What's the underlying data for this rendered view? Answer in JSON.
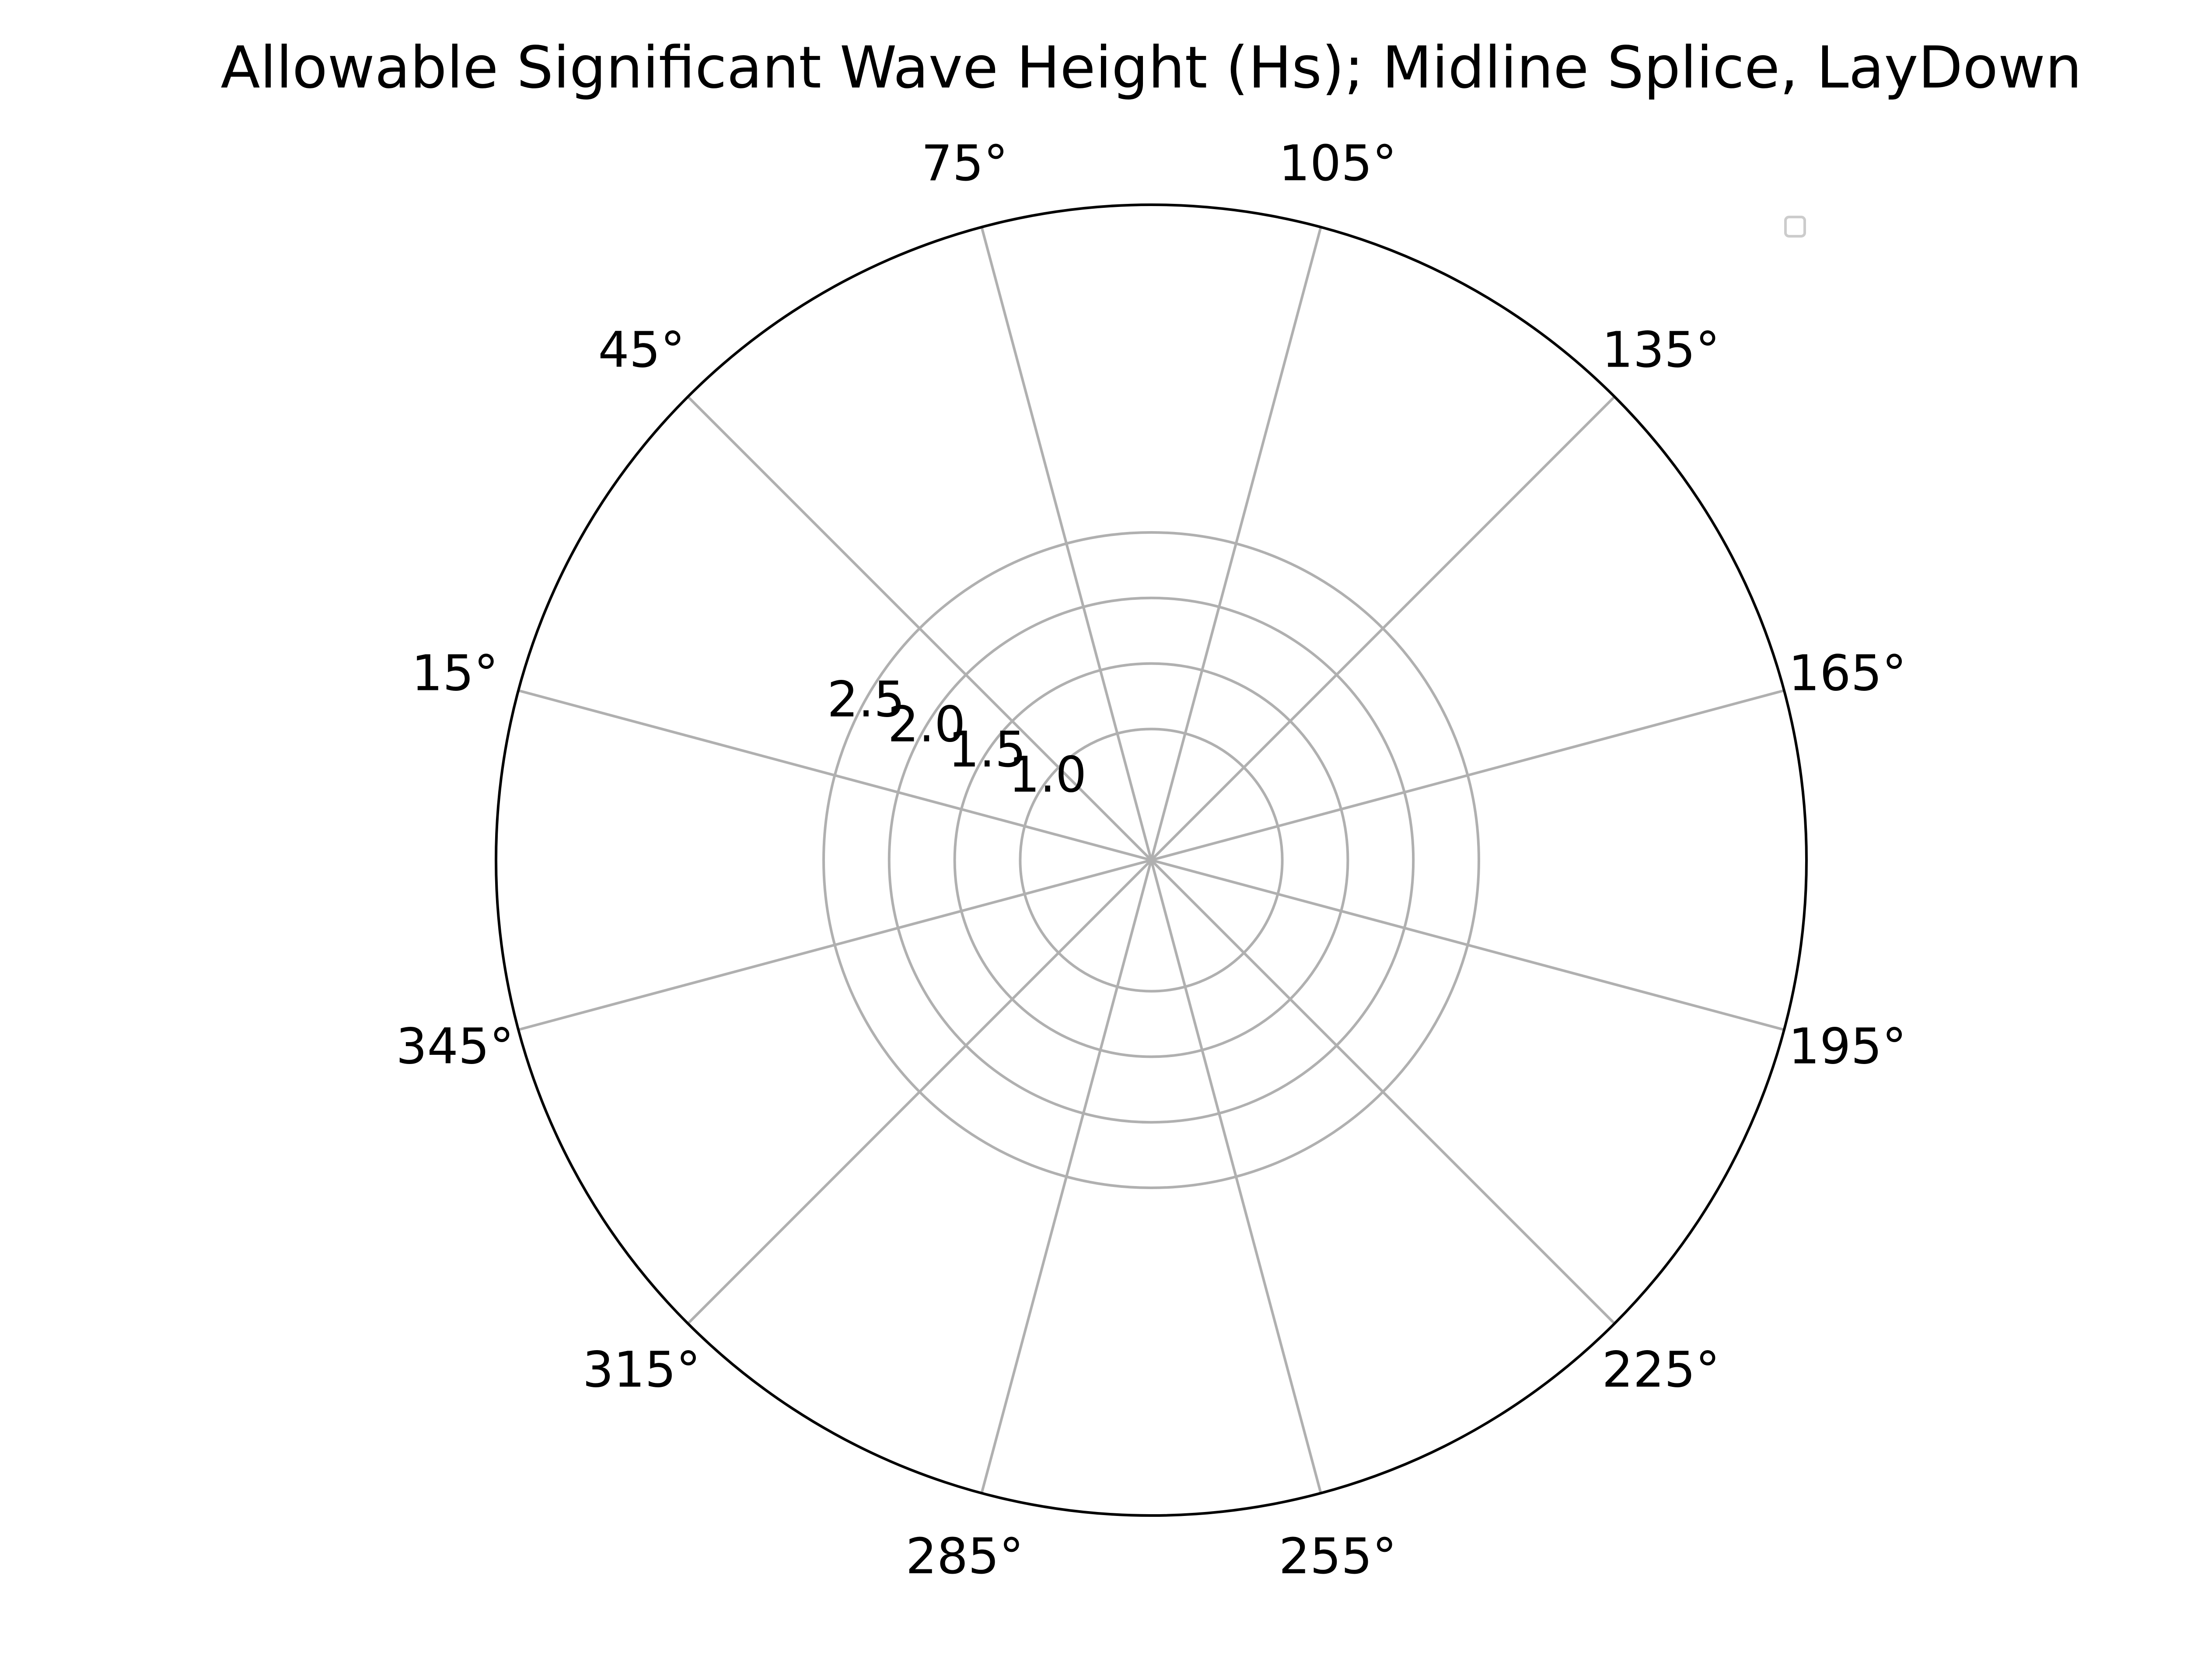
{
  "chart_data": {
    "type": "polar",
    "title": "Allowable Significant Wave Height (Hs); Midline Splice, LayDown",
    "angle_ticks_deg": [
      15,
      45,
      75,
      105,
      135,
      165,
      195,
      225,
      255,
      285,
      315,
      345
    ],
    "angle_tick_labels": [
      "15°",
      "45°",
      "75°",
      "105°",
      "135°",
      "165°",
      "195°",
      "225°",
      "255°",
      "285°",
      "315°",
      "345°"
    ],
    "angle_direction": "clockwise",
    "angle_zero_location": "W",
    "radial_ticks": [
      1.0,
      1.5,
      2.0,
      2.5
    ],
    "radial_tick_labels": [
      "1.0",
      "1.5",
      "2.0",
      "2.5"
    ],
    "rlim": [
      0,
      5
    ],
    "grid": true,
    "series": [],
    "legend": {
      "location": "upper right",
      "entries": []
    },
    "colors": {
      "grid": "#b0b0b0",
      "frame": "#000000",
      "text": "#000000",
      "legend_border": "#cccccc"
    }
  }
}
